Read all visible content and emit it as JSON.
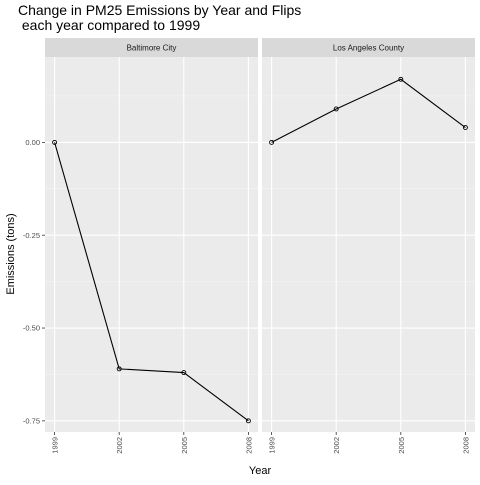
{
  "chart_data": {
    "type": "line",
    "title_line1": "Change in PM25 Emissions by Year and Flips",
    "title_line2": " each year compared to 1999",
    "xlabel": "Year",
    "ylabel": "Emissions (tons)",
    "x": [
      "1999",
      "2002",
      "2005",
      "2008"
    ],
    "ylim": [
      -0.78,
      0.23
    ],
    "yticks": [
      0.0,
      -0.25,
      -0.5,
      -0.75
    ],
    "ytick_labels": [
      "0.00",
      "-0.25",
      "-0.50",
      "-0.75"
    ],
    "grid": true,
    "panels": [
      {
        "label": "Baltimore City",
        "values": [
          0.0,
          -0.61,
          -0.62,
          -0.75
        ]
      },
      {
        "label": "Los Angeles County",
        "values": [
          0.0,
          0.09,
          0.17,
          0.04
        ]
      }
    ]
  }
}
